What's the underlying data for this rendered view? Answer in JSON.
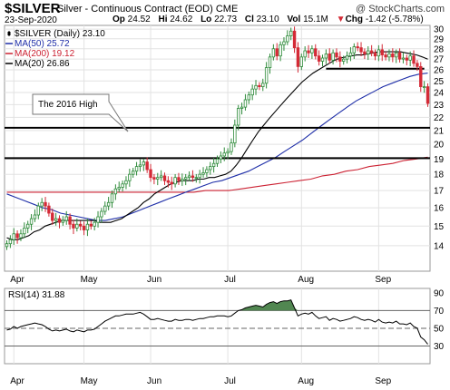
{
  "header": {
    "symbol": "$SILVER",
    "name": "Silver - Continuous Contract (EOD)",
    "exchange": "CME",
    "credit": "@ StockCharts.com",
    "date": "23-Sep-2020",
    "open_label": "Op",
    "open": "24.52",
    "high_label": "Hi",
    "high": "24.62",
    "low_label": "Lo",
    "low": "22.73",
    "close_label": "Cl",
    "close": "23.10",
    "volume_label": "Vol",
    "volume": "15.1M",
    "change_label": "Chg",
    "change": "-1.42 (-5.78%)",
    "change_arrow": "▼"
  },
  "legend": [
    {
      "label": "$SILVER (Daily) 23.10",
      "color": "#000000",
      "kind": "candle"
    },
    {
      "label": "MA(50) 25.72",
      "color": "#1f2fa8",
      "kind": "line"
    },
    {
      "label": "MA(200) 19.12",
      "color": "#cc2233",
      "kind": "line"
    },
    {
      "label": "MA(20) 26.86",
      "color": "#000000",
      "kind": "line"
    }
  ],
  "annotation": "The 2016 High",
  "colors": {
    "up": "#2e8b3a",
    "down": "#d42a36",
    "ma50": "#1f2fa8",
    "ma200": "#cc2233",
    "ma20": "#000000",
    "rsi": "#000000",
    "rsi_fill": "#3e7a3e"
  },
  "chart_data": [
    {
      "type": "candlestick",
      "title": "$SILVER (Daily) 23.10",
      "x_ticks": [
        "Apr",
        "May",
        "Jun",
        "Jul",
        "Aug",
        "Sep"
      ],
      "x_tick_days": [
        2,
        22,
        41,
        63,
        84,
        106
      ],
      "yticks": [
        14,
        15,
        16,
        17,
        18,
        19,
        20,
        21,
        22,
        23,
        24,
        25,
        26,
        27,
        28,
        29,
        30
      ],
      "ylim": [
        12.8,
        30.4
      ],
      "log_scale": true,
      "horizontal_lines": [
        21.2,
        19.05
      ],
      "resistance_line": {
        "value": 26.1,
        "start_day": 91,
        "end_day": 119
      },
      "closes": [
        14.1,
        14.3,
        14.6,
        14.4,
        14.6,
        14.9,
        15.1,
        15.4,
        15.6,
        16.1,
        16.3,
        16.1,
        15.7,
        15.3,
        15.4,
        15.2,
        15.3,
        15.5,
        15.1,
        14.9,
        15.1,
        15.0,
        14.8,
        15.1,
        15.0,
        15.2,
        15.5,
        15.8,
        16.1,
        16.3,
        16.8,
        17.1,
        17.2,
        17.4,
        17.6,
        18.0,
        18.2,
        18.5,
        18.6,
        18.8,
        18.3,
        17.8,
        17.7,
        17.8,
        17.9,
        17.6,
        17.5,
        17.4,
        17.8,
        17.6,
        17.7,
        17.8,
        17.9,
        17.8,
        17.8,
        18.0,
        18.1,
        18.3,
        18.5,
        18.7,
        19.0,
        19.2,
        19.4,
        19.5,
        20.1,
        21.4,
        22.7,
        22.8,
        23.4,
        23.8,
        24.3,
        24.6,
        24.5,
        24.8,
        26.2,
        27.2,
        28.0,
        27.3,
        28.4,
        28.7,
        29.3,
        29.8,
        28.1,
        26.3,
        27.2,
        27.8,
        27.6,
        28.0,
        27.3,
        26.8,
        27.1,
        27.5,
        26.9,
        27.6,
        27.2,
        26.8,
        27.0,
        27.3,
        27.6,
        28.2,
        28.1,
        27.7,
        27.5,
        27.8,
        27.6,
        27.3,
        27.9,
        27.4,
        27.2,
        27.5,
        27.2,
        27.6,
        27.0,
        27.1,
        26.9,
        27.3,
        26.6,
        26.3,
        24.5,
        24.5,
        23.1
      ],
      "ma20": [
        14.4,
        14.3,
        14.3,
        14.4,
        14.5,
        14.7,
        14.8,
        15.0,
        15.1,
        15.2,
        15.3,
        15.3,
        15.3,
        15.3,
        15.3,
        15.3,
        15.3,
        15.2,
        15.2,
        15.2,
        15.3,
        15.4,
        15.6,
        15.8,
        16.0,
        16.3,
        16.5,
        16.8,
        17.0,
        17.2,
        17.4,
        17.5,
        17.6,
        17.6,
        17.6,
        17.7,
        17.7,
        17.8,
        17.8,
        17.9,
        18.0,
        18.2,
        18.6,
        19.1,
        19.7,
        20.3,
        20.9,
        21.4,
        21.9,
        22.4,
        22.9,
        23.4,
        23.9,
        24.4,
        24.9,
        25.3,
        25.7,
        26.0,
        26.3,
        26.6,
        26.9,
        27.1,
        27.2,
        27.3,
        27.4,
        27.4,
        27.5,
        27.6,
        27.7,
        27.7,
        27.7,
        27.7,
        27.7,
        27.6,
        27.5,
        27.4,
        27.2,
        27.0
      ],
      "ma20_start_day": 0,
      "ma50": [
        16.8,
        16.6,
        16.4,
        16.2,
        16.0,
        15.9,
        15.7,
        15.6,
        15.5,
        15.4,
        15.3,
        15.3,
        15.4,
        15.5,
        15.7,
        15.9,
        16.1,
        16.3,
        16.5,
        16.7,
        16.9,
        17.1,
        17.3,
        17.5,
        17.6,
        17.8,
        18.0,
        18.2,
        18.5,
        18.8,
        19.1,
        19.5,
        19.9,
        20.3,
        20.8,
        21.3,
        21.8,
        22.3,
        22.8,
        23.3,
        23.7,
        24.1,
        24.5,
        24.8,
        25.1,
        25.4,
        25.6,
        25.7
      ],
      "ma200": [
        16.9,
        16.9,
        16.9,
        16.9,
        16.9,
        16.9,
        16.9,
        16.9,
        16.9,
        16.9,
        16.9,
        16.9,
        16.9,
        16.9,
        16.9,
        16.9,
        16.9,
        17.0,
        17.0,
        17.0,
        17.1,
        17.2,
        17.3,
        17.4,
        17.5,
        17.6,
        17.7,
        17.9,
        18.0,
        18.2,
        18.3,
        18.5,
        18.6,
        18.7,
        18.9,
        19.0,
        19.12
      ]
    },
    {
      "type": "line",
      "title": "RSI(14) 31.88",
      "x_ticks": [
        "Apr",
        "May",
        "Jun",
        "Jul",
        "Aug",
        "Sep"
      ],
      "yticks": [
        30,
        50,
        70,
        90
      ],
      "ylim": [
        10,
        95
      ],
      "reference_lines": [
        30,
        50,
        70
      ],
      "values": [
        48,
        49,
        52,
        50,
        52,
        53,
        54,
        55,
        56,
        55,
        54,
        52,
        49,
        47,
        48,
        47,
        48,
        49,
        47,
        46,
        48,
        47,
        46,
        48,
        48,
        49,
        52,
        55,
        58,
        60,
        62,
        64,
        64,
        65,
        66,
        66,
        66,
        67,
        68,
        66,
        63,
        60,
        60,
        61,
        60,
        59,
        58,
        58,
        60,
        59,
        59,
        60,
        60,
        59,
        60,
        61,
        61,
        62,
        63,
        63,
        64,
        64,
        64,
        63,
        64,
        67,
        70,
        71,
        73,
        74,
        75,
        76,
        75,
        74,
        77,
        79,
        80,
        78,
        80,
        81,
        81,
        82,
        73,
        64,
        66,
        67,
        66,
        68,
        64,
        61,
        62,
        63,
        59,
        61,
        60,
        58,
        59,
        60,
        61,
        63,
        62,
        60,
        59,
        60,
        59,
        57,
        60,
        57,
        56,
        57,
        56,
        58,
        55,
        55,
        54,
        56,
        52,
        50,
        40,
        37,
        31.88
      ]
    }
  ]
}
